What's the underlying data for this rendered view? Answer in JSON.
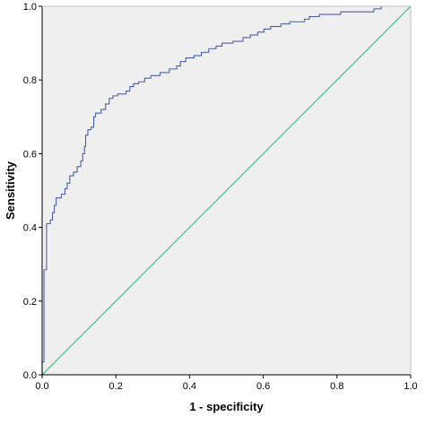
{
  "chart_data": {
    "type": "line",
    "title": "",
    "xlabel": "1 - specificity",
    "ylabel": "Sensitivity",
    "xlim": [
      0.0,
      1.0
    ],
    "ylim": [
      0.0,
      1.0
    ],
    "x_ticks": [
      "0.0",
      "0.2",
      "0.4",
      "0.6",
      "0.8",
      "1.0"
    ],
    "y_ticks": [
      "0.0",
      "0.2",
      "0.4",
      "0.6",
      "0.8",
      "1.0"
    ],
    "grid": false,
    "legend": "none",
    "colors": {
      "plot_background": "#efefef",
      "roc_curve": "#4a5fa8",
      "reference_line": "#3cb371",
      "axis": "#000000"
    },
    "series": [
      {
        "points": [
          [
            0.0,
            0.0
          ],
          [
            0.0,
            0.035
          ],
          [
            0.005,
            0.035
          ],
          [
            0.005,
            0.285
          ],
          [
            0.012,
            0.285
          ],
          [
            0.012,
            0.41
          ],
          [
            0.022,
            0.41
          ],
          [
            0.022,
            0.42
          ],
          [
            0.028,
            0.42
          ],
          [
            0.028,
            0.44
          ],
          [
            0.033,
            0.44
          ],
          [
            0.033,
            0.46
          ],
          [
            0.038,
            0.46
          ],
          [
            0.038,
            0.48
          ],
          [
            0.052,
            0.48
          ],
          [
            0.052,
            0.49
          ],
          [
            0.062,
            0.49
          ],
          [
            0.062,
            0.505
          ],
          [
            0.068,
            0.505
          ],
          [
            0.068,
            0.52
          ],
          [
            0.075,
            0.52
          ],
          [
            0.075,
            0.54
          ],
          [
            0.085,
            0.54
          ],
          [
            0.085,
            0.55
          ],
          [
            0.095,
            0.55
          ],
          [
            0.095,
            0.565
          ],
          [
            0.105,
            0.565
          ],
          [
            0.105,
            0.58
          ],
          [
            0.11,
            0.58
          ],
          [
            0.11,
            0.6
          ],
          [
            0.115,
            0.6
          ],
          [
            0.115,
            0.62
          ],
          [
            0.118,
            0.62
          ],
          [
            0.118,
            0.65
          ],
          [
            0.124,
            0.65
          ],
          [
            0.124,
            0.665
          ],
          [
            0.133,
            0.665
          ],
          [
            0.133,
            0.672
          ],
          [
            0.14,
            0.672
          ],
          [
            0.14,
            0.7
          ],
          [
            0.145,
            0.7
          ],
          [
            0.145,
            0.71
          ],
          [
            0.16,
            0.71
          ],
          [
            0.16,
            0.72
          ],
          [
            0.172,
            0.72
          ],
          [
            0.172,
            0.735
          ],
          [
            0.182,
            0.735
          ],
          [
            0.182,
            0.75
          ],
          [
            0.192,
            0.75
          ],
          [
            0.192,
            0.757
          ],
          [
            0.205,
            0.757
          ],
          [
            0.205,
            0.762
          ],
          [
            0.228,
            0.762
          ],
          [
            0.228,
            0.77
          ],
          [
            0.238,
            0.77
          ],
          [
            0.238,
            0.782
          ],
          [
            0.248,
            0.782
          ],
          [
            0.248,
            0.79
          ],
          [
            0.262,
            0.79
          ],
          [
            0.262,
            0.795
          ],
          [
            0.278,
            0.795
          ],
          [
            0.278,
            0.805
          ],
          [
            0.295,
            0.805
          ],
          [
            0.295,
            0.812
          ],
          [
            0.32,
            0.812
          ],
          [
            0.32,
            0.82
          ],
          [
            0.345,
            0.82
          ],
          [
            0.345,
            0.83
          ],
          [
            0.365,
            0.83
          ],
          [
            0.365,
            0.838
          ],
          [
            0.375,
            0.838
          ],
          [
            0.375,
            0.85
          ],
          [
            0.39,
            0.85
          ],
          [
            0.39,
            0.86
          ],
          [
            0.412,
            0.86
          ],
          [
            0.412,
            0.866
          ],
          [
            0.432,
            0.866
          ],
          [
            0.432,
            0.875
          ],
          [
            0.452,
            0.875
          ],
          [
            0.452,
            0.885
          ],
          [
            0.472,
            0.885
          ],
          [
            0.472,
            0.892
          ],
          [
            0.488,
            0.892
          ],
          [
            0.488,
            0.9
          ],
          [
            0.518,
            0.9
          ],
          [
            0.518,
            0.905
          ],
          [
            0.545,
            0.905
          ],
          [
            0.545,
            0.915
          ],
          [
            0.565,
            0.915
          ],
          [
            0.565,
            0.922
          ],
          [
            0.585,
            0.922
          ],
          [
            0.585,
            0.93
          ],
          [
            0.602,
            0.93
          ],
          [
            0.602,
            0.938
          ],
          [
            0.62,
            0.938
          ],
          [
            0.62,
            0.945
          ],
          [
            0.648,
            0.945
          ],
          [
            0.648,
            0.952
          ],
          [
            0.672,
            0.952
          ],
          [
            0.672,
            0.958
          ],
          [
            0.712,
            0.958
          ],
          [
            0.712,
            0.965
          ],
          [
            0.725,
            0.965
          ],
          [
            0.725,
            0.972
          ],
          [
            0.752,
            0.972
          ],
          [
            0.752,
            0.978
          ],
          [
            0.81,
            0.978
          ],
          [
            0.81,
            0.985
          ],
          [
            0.9,
            0.985
          ],
          [
            0.9,
            0.993
          ],
          [
            0.92,
            0.993
          ],
          [
            0.92,
            1.0
          ],
          [
            1.0,
            1.0
          ]
        ]
      },
      {
        "points": [
          [
            0.0,
            0.0
          ],
          [
            1.0,
            1.0
          ]
        ]
      }
    ]
  }
}
